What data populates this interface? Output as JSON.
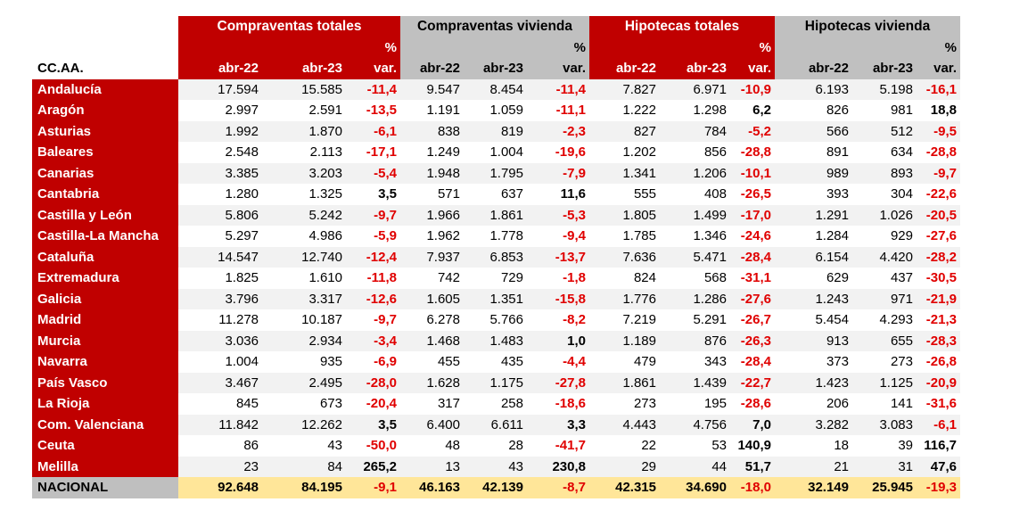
{
  "header": {
    "groups": [
      {
        "title": "Compraventas totales",
        "theme": "red"
      },
      {
        "title": "Compraventas vivienda",
        "theme": "grey"
      },
      {
        "title": "Hipotecas totales",
        "theme": "red"
      },
      {
        "title": "Hipotecas vivienda",
        "theme": "grey"
      }
    ],
    "region_header": "CC.AA.",
    "col_a": "abr-22",
    "col_b": "abr-23",
    "pct_top": "%",
    "pct_bottom": "var."
  },
  "rows": [
    {
      "name": "Andalucía",
      "v": [
        "17.594",
        "15.585",
        "-11,4",
        "9.547",
        "8.454",
        "-11,4",
        "7.827",
        "6.971",
        "-10,9",
        "6.193",
        "5.198",
        "-16,1"
      ]
    },
    {
      "name": "Aragón",
      "v": [
        "2.997",
        "2.591",
        "-13,5",
        "1.191",
        "1.059",
        "-11,1",
        "1.222",
        "1.298",
        "6,2",
        "826",
        "981",
        "18,8"
      ]
    },
    {
      "name": "Asturias",
      "v": [
        "1.992",
        "1.870",
        "-6,1",
        "838",
        "819",
        "-2,3",
        "827",
        "784",
        "-5,2",
        "566",
        "512",
        "-9,5"
      ]
    },
    {
      "name": "Baleares",
      "v": [
        "2.548",
        "2.113",
        "-17,1",
        "1.249",
        "1.004",
        "-19,6",
        "1.202",
        "856",
        "-28,8",
        "891",
        "634",
        "-28,8"
      ]
    },
    {
      "name": "Canarias",
      "v": [
        "3.385",
        "3.203",
        "-5,4",
        "1.948",
        "1.795",
        "-7,9",
        "1.341",
        "1.206",
        "-10,1",
        "989",
        "893",
        "-9,7"
      ]
    },
    {
      "name": "Cantabria",
      "v": [
        "1.280",
        "1.325",
        "3,5",
        "571",
        "637",
        "11,6",
        "555",
        "408",
        "-26,5",
        "393",
        "304",
        "-22,6"
      ]
    },
    {
      "name": "Castilla y León",
      "v": [
        "5.806",
        "5.242",
        "-9,7",
        "1.966",
        "1.861",
        "-5,3",
        "1.805",
        "1.499",
        "-17,0",
        "1.291",
        "1.026",
        "-20,5"
      ]
    },
    {
      "name": "Castilla-La Mancha",
      "v": [
        "5.297",
        "4.986",
        "-5,9",
        "1.962",
        "1.778",
        "-9,4",
        "1.785",
        "1.346",
        "-24,6",
        "1.284",
        "929",
        "-27,6"
      ]
    },
    {
      "name": "Cataluña",
      "v": [
        "14.547",
        "12.740",
        "-12,4",
        "7.937",
        "6.853",
        "-13,7",
        "7.636",
        "5.471",
        "-28,4",
        "6.154",
        "4.420",
        "-28,2"
      ]
    },
    {
      "name": "Extremadura",
      "v": [
        "1.825",
        "1.610",
        "-11,8",
        "742",
        "729",
        "-1,8",
        "824",
        "568",
        "-31,1",
        "629",
        "437",
        "-30,5"
      ]
    },
    {
      "name": "Galicia",
      "v": [
        "3.796",
        "3.317",
        "-12,6",
        "1.605",
        "1.351",
        "-15,8",
        "1.776",
        "1.286",
        "-27,6",
        "1.243",
        "971",
        "-21,9"
      ]
    },
    {
      "name": "Madrid",
      "v": [
        "11.278",
        "10.187",
        "-9,7",
        "6.278",
        "5.766",
        "-8,2",
        "7.219",
        "5.291",
        "-26,7",
        "5.454",
        "4.293",
        "-21,3"
      ]
    },
    {
      "name": "Murcia",
      "v": [
        "3.036",
        "2.934",
        "-3,4",
        "1.468",
        "1.483",
        "1,0",
        "1.189",
        "876",
        "-26,3",
        "913",
        "655",
        "-28,3"
      ]
    },
    {
      "name": "Navarra",
      "v": [
        "1.004",
        "935",
        "-6,9",
        "455",
        "435",
        "-4,4",
        "479",
        "343",
        "-28,4",
        "373",
        "273",
        "-26,8"
      ]
    },
    {
      "name": "País Vasco",
      "v": [
        "3.467",
        "2.495",
        "-28,0",
        "1.628",
        "1.175",
        "-27,8",
        "1.861",
        "1.439",
        "-22,7",
        "1.423",
        "1.125",
        "-20,9"
      ]
    },
    {
      "name": "La Rioja",
      "v": [
        "845",
        "673",
        "-20,4",
        "317",
        "258",
        "-18,6",
        "273",
        "195",
        "-28,6",
        "206",
        "141",
        "-31,6"
      ]
    },
    {
      "name": "Com. Valenciana",
      "v": [
        "11.842",
        "12.262",
        "3,5",
        "6.400",
        "6.611",
        "3,3",
        "4.443",
        "4.756",
        "7,0",
        "3.282",
        "3.083",
        "-6,1"
      ]
    },
    {
      "name": "Ceuta",
      "v": [
        "86",
        "43",
        "-50,0",
        "48",
        "28",
        "-41,7",
        "22",
        "53",
        "140,9",
        "18",
        "39",
        "116,7"
      ]
    },
    {
      "name": "Melilla",
      "v": [
        "23",
        "84",
        "265,2",
        "13",
        "43",
        "230,8",
        "29",
        "44",
        "51,7",
        "21",
        "31",
        "47,6"
      ]
    }
  ],
  "total": {
    "name": "NACIONAL",
    "v": [
      "92.648",
      "84.195",
      "-9,1",
      "46.163",
      "42.139",
      "-8,7",
      "42.315",
      "34.690",
      "-18,0",
      "32.149",
      "25.945",
      "-19,3"
    ]
  },
  "colors": {
    "header_red": "#c00000",
    "header_grey": "#c0c0c0",
    "negative": "#e00000",
    "total_bg": "#ffe699"
  }
}
